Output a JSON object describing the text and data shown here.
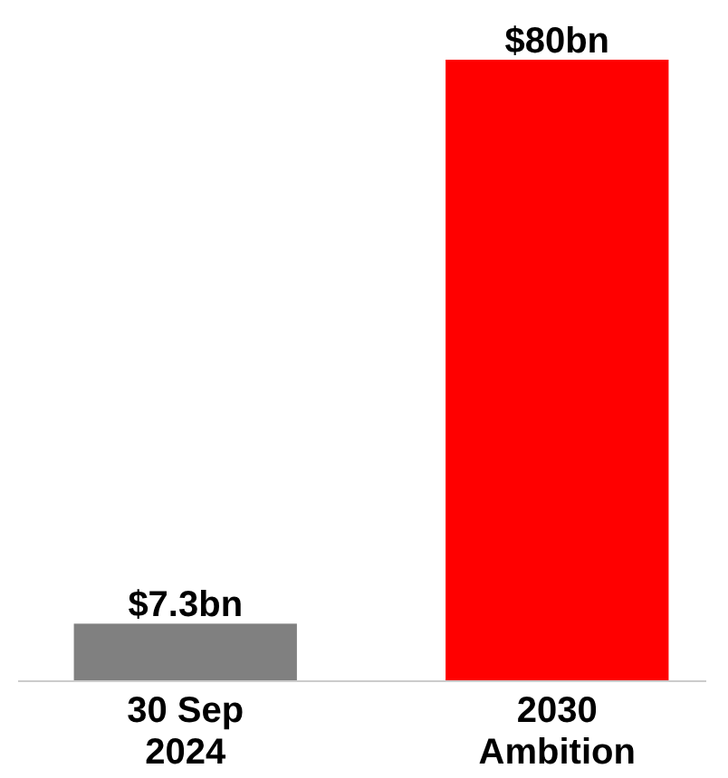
{
  "chart_data": {
    "type": "bar",
    "categories": [
      "30 Sep 2024",
      "2030 Ambition"
    ],
    "values": [
      7.3,
      80
    ],
    "colors": [
      "#808080",
      "#ff0000"
    ],
    "value_labels": [
      "$7.3bn",
      "$80bn"
    ]
  }
}
